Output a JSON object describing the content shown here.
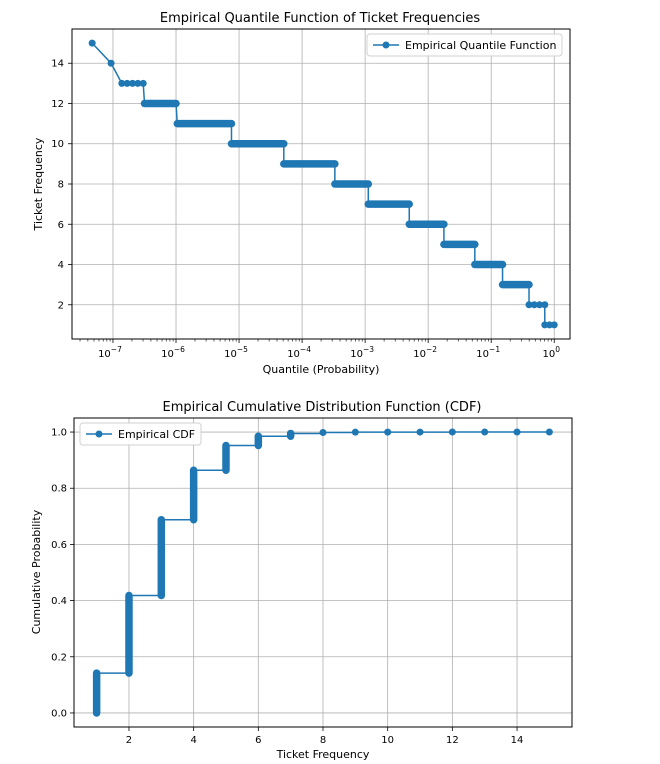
{
  "colors": {
    "series": "#1f77b4",
    "grid": "#b0b0b0",
    "frame": "#000000",
    "background": "#ffffff"
  },
  "chart_data": [
    {
      "type": "line",
      "title": "Empirical Quantile Function of Ticket Frequencies",
      "xlabel": "Quantile (Probability)",
      "ylabel": "Ticket Frequency",
      "xscale": "log",
      "xlim_exp": [
        -7.65,
        0.25
      ],
      "ylim": [
        0.3,
        15.7
      ],
      "x_tick_exponents": [
        -7,
        -6,
        -5,
        -4,
        -3,
        -2,
        -1,
        0
      ],
      "x_tick_labels": [
        "10",
        "10",
        "10",
        "10",
        "10",
        "10",
        "10",
        "10"
      ],
      "x_tick_superscripts": [
        "−7",
        "−6",
        "−5",
        "−4",
        "−3",
        "−2",
        "−1",
        "0"
      ],
      "y_ticks": [
        2,
        4,
        6,
        8,
        10,
        12,
        14
      ],
      "y_tick_labels": [
        "2",
        "4",
        "6",
        "8",
        "10",
        "12",
        "14"
      ],
      "legend": "Empirical Quantile Function",
      "legend_position": "upper right",
      "grid": true,
      "marker": "circle",
      "steps": [
        {
          "y": 15,
          "x_start_exp": -7.33,
          "x_end_exp": -7.33
        },
        {
          "y": 14,
          "x_start_exp": -7.03,
          "x_end_exp": -7.03
        },
        {
          "y": 13,
          "x_start_exp": -6.86,
          "x_end_exp": -6.52
        },
        {
          "y": 12,
          "x_start_exp": -6.5,
          "x_end_exp": -6.0
        },
        {
          "y": 11,
          "x_start_exp": -5.98,
          "x_end_exp": -5.12
        },
        {
          "y": 10,
          "x_start_exp": -5.12,
          "x_end_exp": -4.29
        },
        {
          "y": 9,
          "x_start_exp": -4.29,
          "x_end_exp": -3.48
        },
        {
          "y": 8,
          "x_start_exp": -3.48,
          "x_end_exp": -2.95
        },
        {
          "y": 7,
          "x_start_exp": -2.95,
          "x_end_exp": -2.3
        },
        {
          "y": 6,
          "x_start_exp": -2.3,
          "x_end_exp": -1.75
        },
        {
          "y": 5,
          "x_start_exp": -1.75,
          "x_end_exp": -1.26
        },
        {
          "y": 4,
          "x_start_exp": -1.26,
          "x_end_exp": -0.82
        },
        {
          "y": 3,
          "x_start_exp": -0.82,
          "x_end_exp": -0.4
        },
        {
          "y": 2,
          "x_start_exp": -0.4,
          "x_end_exp": -0.15
        },
        {
          "y": 1,
          "x_start_exp": -0.15,
          "x_end_exp": 0.0
        }
      ]
    },
    {
      "type": "line",
      "title": "Empirical Cumulative Distribution Function (CDF)",
      "xlabel": "Ticket Frequency",
      "ylabel": "Cumulative Probability",
      "xlim": [
        0.3,
        15.7
      ],
      "ylim": [
        -0.05,
        1.05
      ],
      "x_ticks": [
        2,
        4,
        6,
        8,
        10,
        12,
        14
      ],
      "x_tick_labels": [
        "2",
        "4",
        "6",
        "8",
        "10",
        "12",
        "14"
      ],
      "y_ticks": [
        0.0,
        0.2,
        0.4,
        0.6,
        0.8,
        1.0
      ],
      "y_tick_labels": [
        "0.0",
        "0.2",
        "0.4",
        "0.6",
        "0.8",
        "1.0"
      ],
      "legend": "Empirical CDF",
      "legend_position": "upper left",
      "grid": true,
      "marker": "circle",
      "x": [
        1,
        2,
        3,
        4,
        5,
        6,
        7,
        8,
        9,
        10,
        11,
        12,
        13,
        14,
        15
      ],
      "cdf_low": [
        0.0,
        0.142,
        0.418,
        0.688,
        0.864,
        0.952,
        0.985,
        0.995,
        0.9985,
        0.9995,
        0.9998,
        0.99993,
        0.99997,
        0.99999,
        1.0
      ],
      "cdf_high": [
        0.142,
        0.418,
        0.688,
        0.864,
        0.952,
        0.985,
        0.995,
        0.9985,
        0.9995,
        0.9998,
        0.99993,
        0.99997,
        0.99999,
        1.0,
        1.0
      ]
    }
  ]
}
